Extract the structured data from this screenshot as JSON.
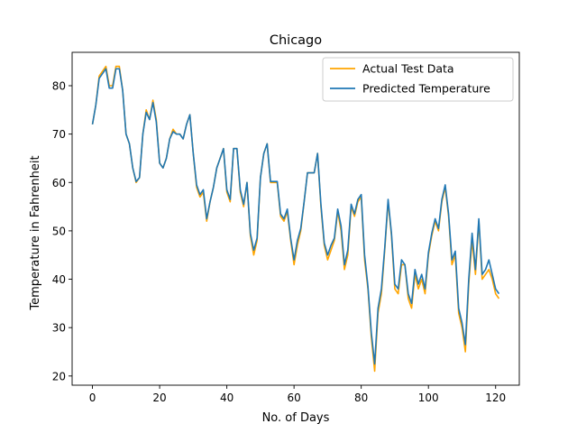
{
  "chart_data": {
    "type": "line",
    "title": "Chicago",
    "xlabel": "No. of Days",
    "ylabel": "Temperature in Fahrenheit",
    "xlim": [
      -6.05,
      127.05
    ],
    "ylim": [
      18.1,
      86.9
    ],
    "xticks": [
      0,
      20,
      40,
      60,
      80,
      100,
      120
    ],
    "yticks": [
      20,
      30,
      40,
      50,
      60,
      70,
      80
    ],
    "grid": false,
    "legend_position": "top-right",
    "series": [
      {
        "name": "Actual Test Data",
        "color": "#ffa500",
        "x": [
          0,
          1,
          2,
          3,
          4,
          5,
          6,
          7,
          8,
          9,
          10,
          11,
          12,
          13,
          14,
          15,
          16,
          17,
          18,
          19,
          20,
          21,
          22,
          23,
          24,
          25,
          26,
          27,
          28,
          29,
          30,
          31,
          32,
          33,
          34,
          35,
          36,
          37,
          38,
          39,
          40,
          41,
          42,
          43,
          44,
          45,
          46,
          47,
          48,
          49,
          50,
          51,
          52,
          53,
          54,
          55,
          56,
          57,
          58,
          59,
          60,
          61,
          62,
          63,
          64,
          65,
          66,
          67,
          68,
          69,
          70,
          71,
          72,
          73,
          74,
          75,
          76,
          77,
          78,
          79,
          80,
          81,
          82,
          83,
          84,
          85,
          86,
          87,
          88,
          89,
          90,
          91,
          92,
          93,
          94,
          95,
          96,
          97,
          98,
          99,
          100,
          101,
          102,
          103,
          104,
          105,
          106,
          107,
          108,
          109,
          110,
          111,
          112,
          113,
          114,
          115,
          116,
          117,
          118,
          119,
          120,
          121
        ],
        "y": [
          72,
          76,
          82,
          83,
          84,
          80,
          80,
          84,
          84,
          79,
          70,
          68,
          63,
          60,
          61,
          70,
          75,
          73,
          77,
          73,
          64,
          63,
          65,
          69,
          71,
          70,
          70,
          69,
          72,
          74,
          66,
          59,
          57,
          58,
          52,
          56,
          59,
          63,
          65,
          67,
          58,
          56,
          67,
          67,
          58,
          55,
          60,
          49,
          45,
          48,
          61,
          66,
          68,
          60,
          60,
          60,
          53,
          52,
          54,
          48,
          43,
          47,
          50,
          56,
          62,
          62,
          62,
          66,
          55,
          47,
          44,
          46,
          48,
          54,
          50,
          42,
          45,
          55,
          53,
          56,
          57,
          44,
          38,
          28,
          21,
          33,
          37,
          46,
          56,
          49,
          38,
          37,
          43,
          43,
          36,
          34,
          41,
          38,
          40,
          37,
          45,
          49,
          52,
          50,
          56,
          59,
          53,
          43,
          45,
          33,
          30,
          25,
          39,
          48,
          41,
          52,
          40,
          41,
          42,
          40,
          37,
          36
        ]
      },
      {
        "name": "Predicted Temperature",
        "color": "#1f77b4",
        "x": [
          0,
          1,
          2,
          3,
          4,
          5,
          6,
          7,
          8,
          9,
          10,
          11,
          12,
          13,
          14,
          15,
          16,
          17,
          18,
          19,
          20,
          21,
          22,
          23,
          24,
          25,
          26,
          27,
          28,
          29,
          30,
          31,
          32,
          33,
          34,
          35,
          36,
          37,
          38,
          39,
          40,
          41,
          42,
          43,
          44,
          45,
          46,
          47,
          48,
          49,
          50,
          51,
          52,
          53,
          54,
          55,
          56,
          57,
          58,
          59,
          60,
          61,
          62,
          63,
          64,
          65,
          66,
          67,
          68,
          69,
          70,
          71,
          72,
          73,
          74,
          75,
          76,
          77,
          78,
          79,
          80,
          81,
          82,
          83,
          84,
          85,
          86,
          87,
          88,
          89,
          90,
          91,
          92,
          93,
          94,
          95,
          96,
          97,
          98,
          99,
          100,
          101,
          102,
          103,
          104,
          105,
          106,
          107,
          108,
          109,
          110,
          111,
          112,
          113,
          114,
          115,
          116,
          117,
          118,
          119,
          120,
          121
        ],
        "y": [
          72,
          76,
          81.5,
          82.5,
          83.5,
          79.5,
          79.5,
          83.5,
          83.5,
          79,
          70,
          68,
          63,
          60.2,
          61,
          70,
          74.5,
          73,
          76.5,
          72.5,
          64,
          63,
          65,
          69,
          70.5,
          70,
          70,
          69,
          72,
          74,
          66,
          59.5,
          57.5,
          58.5,
          52.5,
          56,
          59,
          63,
          65,
          67,
          58.5,
          56.5,
          67,
          67,
          58.5,
          55.5,
          60,
          49.5,
          46,
          48.5,
          61,
          66,
          68,
          60.2,
          60.2,
          60.2,
          53.5,
          52.5,
          54.5,
          48.5,
          44,
          48,
          50.5,
          56,
          62,
          62,
          62,
          66,
          55.5,
          47.5,
          45,
          47,
          48.5,
          54.5,
          51,
          43,
          46,
          55.5,
          53.5,
          56.5,
          57.5,
          45,
          38.5,
          29,
          22.5,
          34,
          38,
          46.5,
          56.5,
          49.5,
          39,
          38,
          44,
          43,
          37,
          35,
          42,
          39,
          41,
          38,
          45.5,
          49.5,
          52.5,
          50.5,
          56.5,
          59.5,
          53.5,
          44,
          45.8,
          34,
          31,
          26.5,
          40,
          49.5,
          42,
          52.5,
          41,
          42,
          44,
          41,
          38,
          37
        ]
      }
    ]
  }
}
